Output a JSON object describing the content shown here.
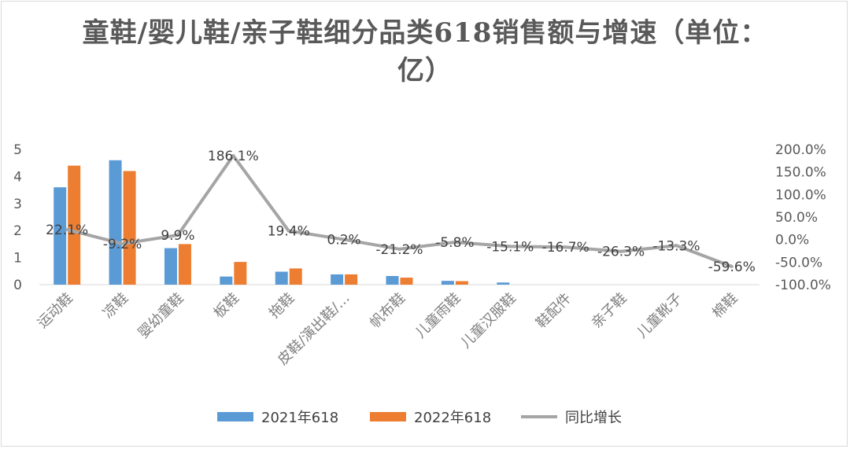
{
  "chart_data": {
    "type": "bar",
    "title": "童鞋/婴儿鞋/亲子鞋细分品类618销售额与增速（单位：亿）",
    "categories": [
      "运动鞋",
      "凉鞋",
      "婴幼童鞋",
      "板鞋",
      "拖鞋",
      "皮鞋/演出鞋/…",
      "帆布鞋",
      "儿童雨鞋",
      "儿童汉服鞋",
      "鞋配件",
      "亲子鞋",
      "儿童靴子",
      "棉鞋"
    ],
    "series": [
      {
        "name": "2021年618",
        "type": "bar",
        "axis": "left",
        "color": "#5b9bd5",
        "values": [
          3.6,
          4.6,
          1.35,
          0.3,
          0.48,
          0.38,
          0.32,
          0.14,
          0.08,
          0.0,
          0.0,
          0.0,
          0.0
        ]
      },
      {
        "name": "2022年618",
        "type": "bar",
        "axis": "left",
        "color": "#ed7d31",
        "values": [
          4.4,
          4.2,
          1.5,
          0.84,
          0.6,
          0.38,
          0.26,
          0.13,
          0.0,
          0.0,
          0.0,
          0.0,
          0.0
        ]
      },
      {
        "name": "同比增长",
        "type": "line",
        "axis": "right",
        "color": "#a5a5a5",
        "values": [
          22.1,
          -9.2,
          9.9,
          186.1,
          19.4,
          0.2,
          -21.2,
          -5.8,
          -15.1,
          -16.7,
          -26.3,
          -13.3,
          -59.6
        ],
        "labels": [
          "22.1%",
          "-9.2%",
          "9.9%",
          "186.1%",
          "19.4%",
          "0.2%",
          "-21.2%",
          "-5.8%",
          "-15.1%",
          "-16.7%",
          "-26.3%",
          "-13.3%",
          "-59.6%"
        ]
      }
    ],
    "y_left": {
      "ylim": [
        0,
        5
      ],
      "ticks": [
        "0",
        "1",
        "2",
        "3",
        "4",
        "5"
      ]
    },
    "y_right": {
      "ylim": [
        -100,
        200
      ],
      "ticks": [
        "-100.0%",
        "-50.0%",
        "0.0%",
        "50.0%",
        "100.0%",
        "150.0%",
        "200.0%"
      ]
    },
    "grid": false,
    "legend": "bottom-center"
  }
}
